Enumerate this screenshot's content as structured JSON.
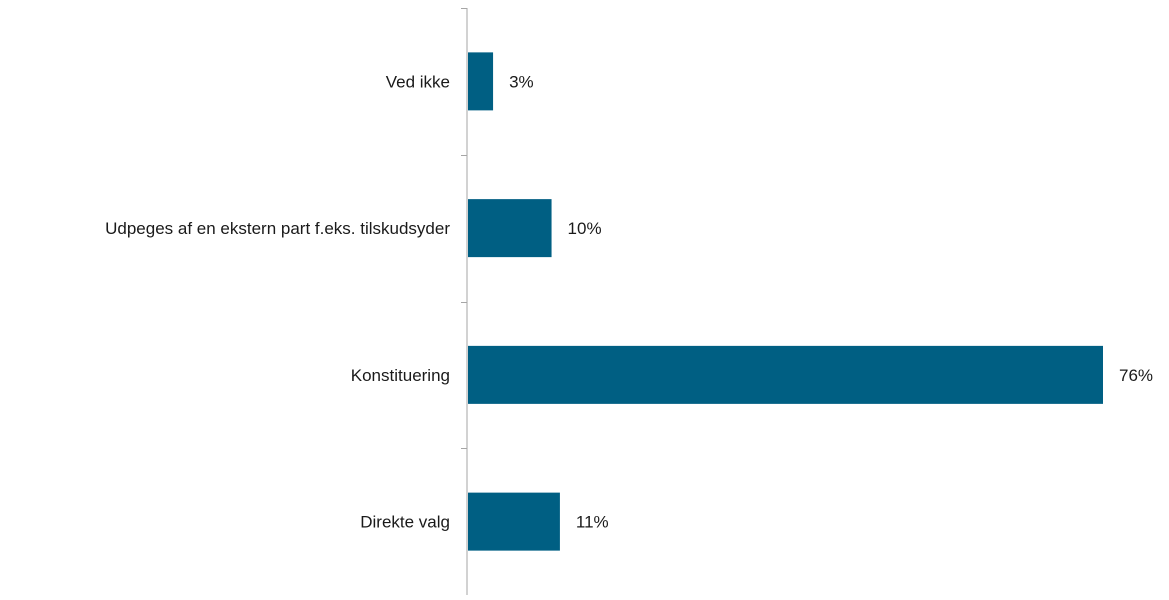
{
  "chart_data": {
    "type": "bar",
    "orientation": "horizontal",
    "categories": [
      "Ved ikke",
      "Udpeges af en ekstern part f.eks. tilskudsyder",
      "Konstituering",
      "Direkte valg"
    ],
    "values": [
      3,
      10,
      76,
      11
    ],
    "value_labels": [
      "3%",
      "10%",
      "76%",
      "11%"
    ],
    "unit": "%",
    "xlim": [
      0,
      76
    ],
    "grid": false,
    "legend": "none",
    "bar_color": "#005F83",
    "axis_color": "#A6A6A6",
    "text_color": "#1A1A1A"
  }
}
